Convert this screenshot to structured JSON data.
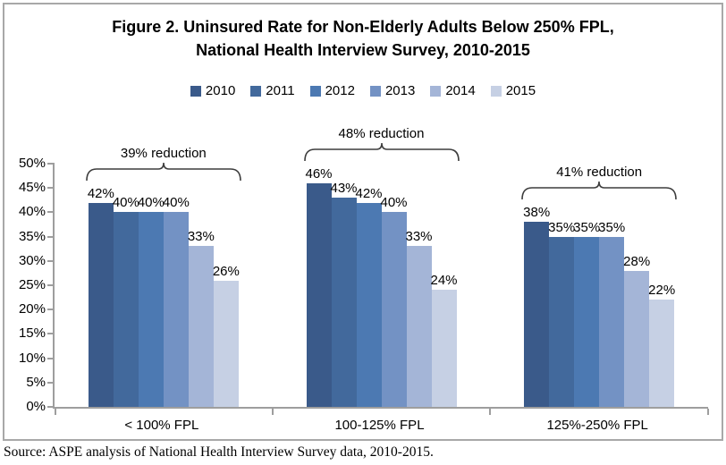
{
  "title": {
    "line1": "Figure 2. Uninsured Rate for Non-Elderly Adults Below 250% FPL,",
    "line2": "National Health Interview Survey, 2010-2015"
  },
  "source": "Source: ASPE analysis of National Health Interview Survey data, 2010-2015.",
  "chart_data": {
    "type": "bar",
    "title": "Figure 2. Uninsured Rate for Non-Elderly Adults Below 250% FPL, National Health Interview Survey, 2010-2015",
    "categories": [
      "< 100% FPL",
      "100-125% FPL",
      "125%-250% FPL"
    ],
    "series": [
      {
        "name": "2010",
        "color": "#3A5A8A",
        "values": [
          42,
          46,
          38
        ]
      },
      {
        "name": "2011",
        "color": "#42699C",
        "values": [
          40,
          43,
          35
        ]
      },
      {
        "name": "2012",
        "color": "#4C79B2",
        "values": [
          40,
          42,
          35
        ]
      },
      {
        "name": "2013",
        "color": "#7392C4",
        "values": [
          40,
          40,
          35
        ]
      },
      {
        "name": "2014",
        "color": "#A4B5D7",
        "values": [
          33,
          33,
          28
        ]
      },
      {
        "name": "2015",
        "color": "#C6D0E4",
        "values": [
          26,
          24,
          22
        ]
      }
    ],
    "data_label_format": "{v}%",
    "annotations": [
      {
        "category": "< 100% FPL",
        "label": "39% reduction"
      },
      {
        "category": "100-125% FPL",
        "label": "48% reduction"
      },
      {
        "category": "125%-250% FPL",
        "label": "41% reduction"
      }
    ],
    "y_axis": {
      "min": 0,
      "max": 50,
      "step": 5,
      "tick_format": "{v}%"
    },
    "legend_position": "top",
    "grid": false,
    "colors": {
      "axis": "#9E9E9E",
      "border": "#A8A8A8",
      "bracket": "#3d3d3d"
    }
  }
}
